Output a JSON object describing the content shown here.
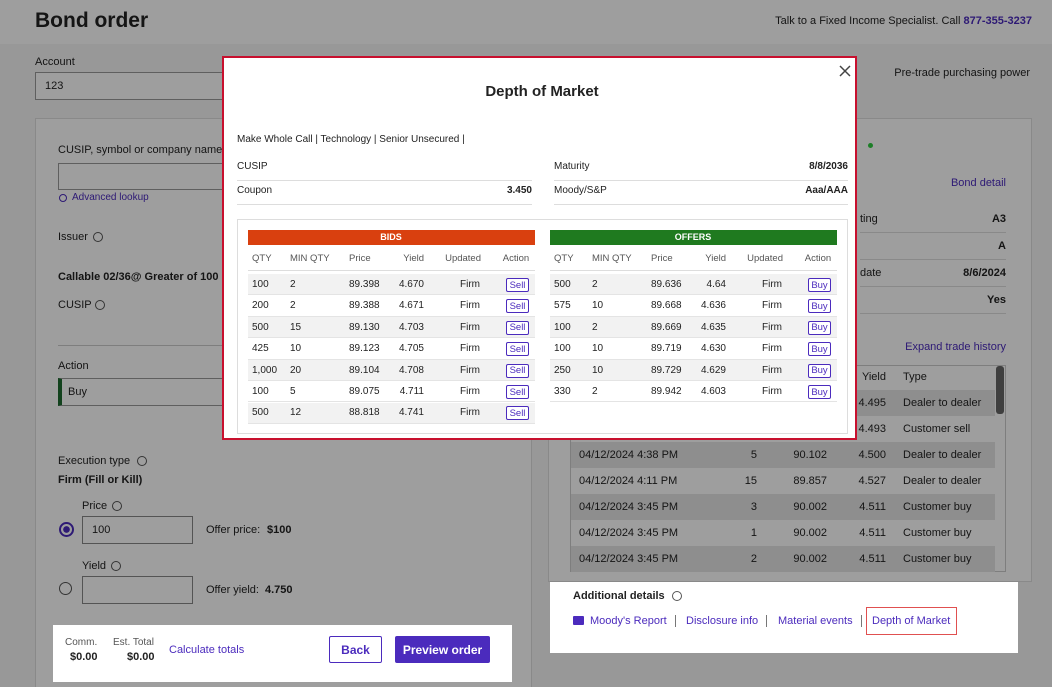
{
  "header": {
    "title": "Bond order",
    "contact": "Talk to a Fixed Income Specialist. Call",
    "phone": "877-355-3237"
  },
  "account": {
    "label": "Account",
    "value": "123",
    "purchasing_power": "Pre-trade purchasing power"
  },
  "order_form": {
    "search_label": "CUSIP, symbol or company name",
    "lookup": "Advanced lookup",
    "issuer": "Issuer",
    "callable": "Callable 02/36@ Greater of 100",
    "cusip": "CUSIP",
    "action_label": "Action",
    "action": "Buy",
    "execution_label": "Execution type",
    "execution": "Firm (Fill or Kill)",
    "price_label": "Price",
    "price": "100",
    "offer_price_label": "Offer price:",
    "offer_price": "$100",
    "yield_label": "Yield",
    "offer_yield_label": "Offer yield:",
    "offer_yield": "4.750"
  },
  "order_footer": {
    "comm_label": "Comm.",
    "comm": "$0.00",
    "total_label": "Est. Total",
    "total": "$0.00",
    "calculate": "Calculate totals",
    "back": "Back",
    "preview": "Preview order"
  },
  "bond_detail": {
    "link": "Bond detail",
    "rows": [
      {
        "label": "ting",
        "value": "A3"
      },
      {
        "value": "A"
      },
      {
        "label": "date",
        "value": "8/6/2024"
      },
      {
        "value": "Yes"
      }
    ],
    "expand": "Expand trade history"
  },
  "trade_history": {
    "columns": [
      "Yield",
      "Type"
    ],
    "rows": [
      {
        "yield": "4.495",
        "type": "Dealer to dealer"
      },
      {
        "yield": "4.493",
        "type": "Customer sell"
      },
      {
        "date": "04/12/2024 4:38 PM",
        "qty": "5",
        "price": "90.102",
        "yield": "4.500",
        "type": "Dealer to dealer"
      },
      {
        "date": "04/12/2024 4:11 PM",
        "qty": "15",
        "price": "89.857",
        "yield": "4.527",
        "type": "Dealer to dealer"
      },
      {
        "date": "04/12/2024 3:45 PM",
        "qty": "3",
        "price": "90.002",
        "yield": "4.511",
        "type": "Customer buy"
      },
      {
        "date": "04/12/2024 3:45 PM",
        "qty": "1",
        "price": "90.002",
        "yield": "4.511",
        "type": "Customer buy"
      },
      {
        "date": "04/12/2024 3:45 PM",
        "qty": "2",
        "price": "90.002",
        "yield": "4.511",
        "type": "Customer buy"
      }
    ]
  },
  "additional_details": {
    "title": "Additional details",
    "links": [
      "Moody's Report",
      "Disclosure info",
      "Material events",
      "Depth of Market"
    ]
  },
  "depth_of_market": {
    "title": "Depth of Market",
    "tags": "Make Whole Call | Technology | Senior Unsecured |",
    "info": [
      {
        "label": "CUSIP"
      },
      {
        "label": "Maturity",
        "value": "8/8/2036"
      },
      {
        "label": "Coupon",
        "value": "3.450"
      },
      {
        "label": "Moody/S&P",
        "value": "Aaa/AAA"
      }
    ],
    "bids": {
      "title": "BIDS",
      "columns": [
        "QTY",
        "MIN QTY",
        "Price",
        "Yield",
        "Updated",
        "Action"
      ],
      "rows": [
        [
          "100",
          "2",
          "89.398",
          "4.670",
          "Firm",
          "Sell"
        ],
        [
          "200",
          "2",
          "89.388",
          "4.671",
          "Firm",
          "Sell"
        ],
        [
          "500",
          "15",
          "89.130",
          "4.703",
          "Firm",
          "Sell"
        ],
        [
          "425",
          "10",
          "89.123",
          "4.705",
          "Firm",
          "Sell"
        ],
        [
          "1,000",
          "20",
          "89.104",
          "4.708",
          "Firm",
          "Sell"
        ],
        [
          "100",
          "5",
          "89.075",
          "4.711",
          "Firm",
          "Sell"
        ],
        [
          "500",
          "12",
          "88.818",
          "4.741",
          "Firm",
          "Sell"
        ]
      ]
    },
    "offers": {
      "title": "OFFERS",
      "columns": [
        "QTY",
        "MIN QTY",
        "Price",
        "Yield",
        "Updated",
        "Action"
      ],
      "rows": [
        [
          "500",
          "2",
          "89.636",
          "4.64",
          "Firm",
          "Buy"
        ],
        [
          "575",
          "10",
          "89.668",
          "4.636",
          "Firm",
          "Buy"
        ],
        [
          "100",
          "2",
          "89.669",
          "4.635",
          "Firm",
          "Buy"
        ],
        [
          "100",
          "10",
          "89.719",
          "4.630",
          "Firm",
          "Buy"
        ],
        [
          "250",
          "10",
          "89.729",
          "4.629",
          "Firm",
          "Buy"
        ],
        [
          "330",
          "2",
          "89.942",
          "4.603",
          "Firm",
          "Buy"
        ]
      ]
    }
  }
}
